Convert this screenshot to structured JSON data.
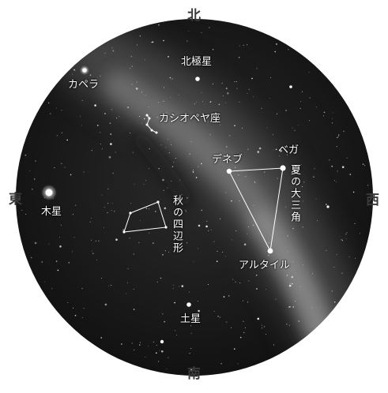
{
  "directions": {
    "north": "北",
    "south": "南",
    "east": "東",
    "west": "西"
  },
  "labels": {
    "polaris": "北極星",
    "capella": "カペラ",
    "cassiopeia": "カシオペヤ座",
    "deneb": "デネブ",
    "vega": "ベガ",
    "summer_triangle": "夏の大三角",
    "jupiter": "木星",
    "autumn_square": "秋の四辺形",
    "altair": "アルタイル",
    "saturn": "土星"
  },
  "colors": {
    "sky": "#1c1c1c",
    "milky_way": "#8a8a8a",
    "star": "#ffffff",
    "direction_text": "#3a3a3a"
  }
}
